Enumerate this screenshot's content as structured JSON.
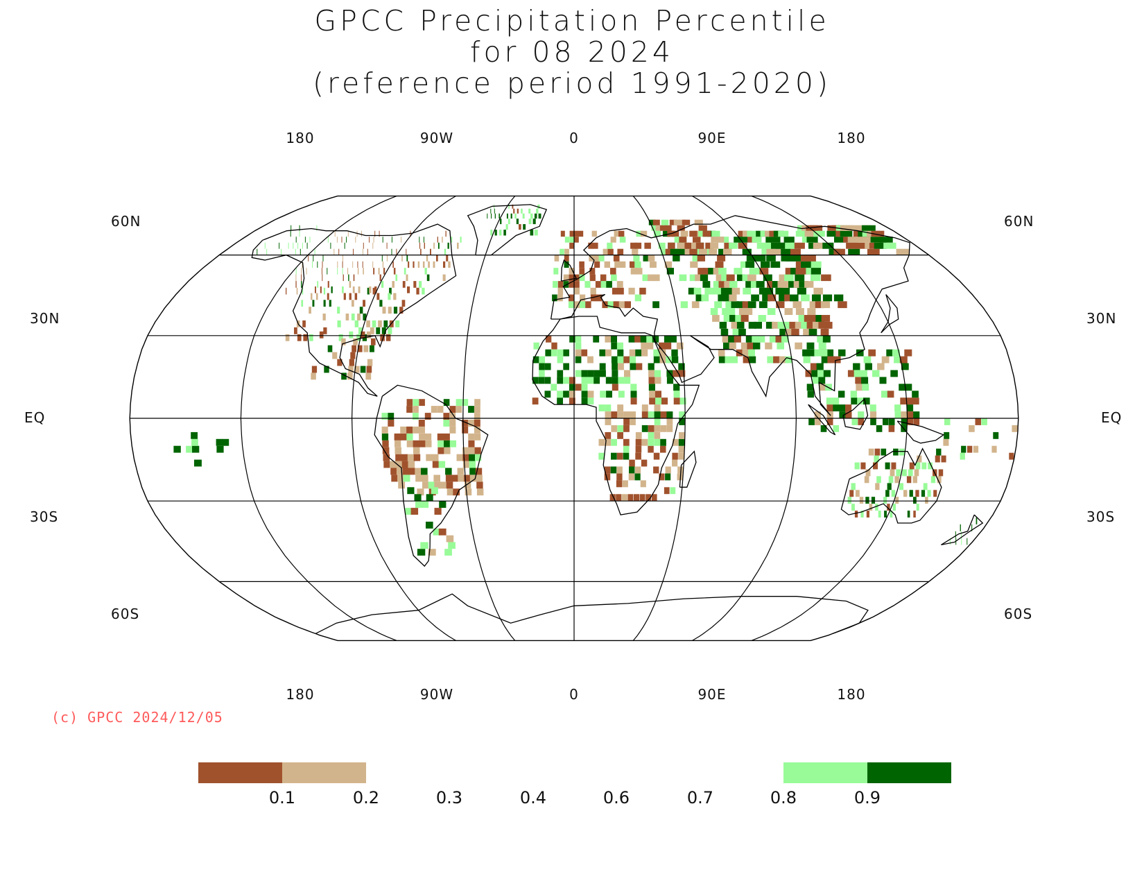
{
  "title": {
    "line1": "GPCC Precipitation Percentile",
    "line2": "for 08 2024",
    "line3": "(reference period 1991-2020)"
  },
  "copyright": "(c) GPCC 2024/12/05",
  "map": {
    "projection": "Robinson",
    "central_longitude": 0,
    "longitude_labels_top": [
      "180",
      "90W",
      "0",
      "90E",
      "180"
    ],
    "longitude_labels_bottom": [
      "180",
      "90W",
      "0",
      "90E",
      "180"
    ],
    "latitude_labels_left": [
      "60N",
      "30N",
      "EQ",
      "30S",
      "60S"
    ],
    "latitude_labels_right": [
      "60N",
      "30N",
      "EQ",
      "30S",
      "60S"
    ]
  },
  "legend": {
    "colors": {
      "very_dry": "#a0522d",
      "dry": "#d2b48c",
      "wet": "#98fb98",
      "very_wet": "#006400"
    },
    "tick_labels": [
      "0.1",
      "0.2",
      "0.3",
      "0.4",
      "0.6",
      "0.7",
      "0.8",
      "0.9"
    ]
  }
}
